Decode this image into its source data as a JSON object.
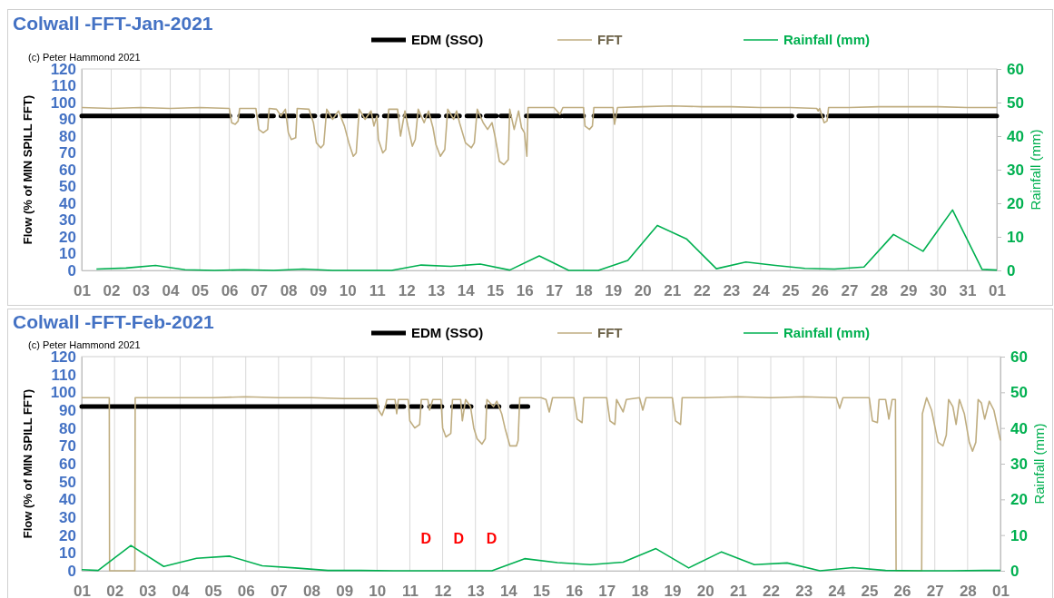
{
  "chart_data": [
    {
      "type": "line",
      "title": "Colwall -FFT-Jan-2021",
      "ylabel": "Flow (% of MIN SPILL FFT)",
      "y2label": "Rainfall (mm)",
      "annotations": [
        "(c) Peter Hammond 2021"
      ],
      "xlim": [
        "2021-01-01",
        "2021-02-01"
      ],
      "xticks": [
        {
          "value": "2021-01-01",
          "label": "01"
        },
        {
          "value": "2021-01-02",
          "label": "02"
        },
        {
          "value": "2021-01-03",
          "label": "03"
        },
        {
          "value": "2021-01-04",
          "label": "04"
        },
        {
          "value": "2021-01-05",
          "label": "05"
        },
        {
          "value": "2021-01-06",
          "label": "06"
        },
        {
          "value": "2021-01-07",
          "label": "07"
        },
        {
          "value": "2021-01-08",
          "label": "08"
        },
        {
          "value": "2021-01-09",
          "label": "09"
        },
        {
          "value": "2021-01-10",
          "label": "10"
        },
        {
          "value": "2021-01-11",
          "label": "11"
        },
        {
          "value": "2021-01-12",
          "label": "12"
        },
        {
          "value": "2021-01-13",
          "label": "13"
        },
        {
          "value": "2021-01-14",
          "label": "14"
        },
        {
          "value": "2021-01-15",
          "label": "15"
        },
        {
          "value": "2021-01-16",
          "label": "16"
        },
        {
          "value": "2021-01-17",
          "label": "17"
        },
        {
          "value": "2021-01-18",
          "label": "18"
        },
        {
          "value": "2021-01-19",
          "label": "19"
        },
        {
          "value": "2021-01-20",
          "label": "20"
        },
        {
          "value": "2021-01-21",
          "label": "21"
        },
        {
          "value": "2021-01-22",
          "label": "22"
        },
        {
          "value": "2021-01-23",
          "label": "23"
        },
        {
          "value": "2021-01-24",
          "label": "24"
        },
        {
          "value": "2021-01-25",
          "label": "25"
        },
        {
          "value": "2021-01-26",
          "label": "26"
        },
        {
          "value": "2021-01-27",
          "label": "27"
        },
        {
          "value": "2021-01-28",
          "label": "28"
        },
        {
          "value": "2021-01-29",
          "label": "29"
        },
        {
          "value": "2021-01-30",
          "label": "30"
        },
        {
          "value": "2021-01-31",
          "label": "31"
        },
        {
          "value": "2021-02-01",
          "label": "01"
        }
      ],
      "ylim": [
        0,
        120
      ],
      "yticks": [
        0,
        10,
        20,
        30,
        40,
        50,
        60,
        70,
        80,
        90,
        100,
        110,
        120
      ],
      "y2lim": [
        0,
        60
      ],
      "y2ticks": [
        0,
        10,
        20,
        30,
        40,
        50,
        60
      ],
      "grid": "x",
      "legend": "top",
      "series": [
        {
          "name": "EDM (SSO)",
          "color": "#000000",
          "x": [
            "2021-01-01T00:00",
            "2021-01-06T00:30",
            "2021-01-06T04:48",
            "2021-01-06T08:24",
            "2021-01-06T19:12",
            "2021-01-06T21:36",
            "2021-01-07T01:12",
            "2021-01-07T12:00",
            "2021-01-07T14:24",
            "2021-01-07T18:00",
            "2021-01-08T04:48",
            "2021-01-08T07:12",
            "2021-01-08T10:48",
            "2021-01-08T21:36",
            "2021-01-09T00:00",
            "2021-01-09T03:36",
            "2021-01-09T14:24",
            "2021-01-09T16:48",
            "2021-01-09T20:24",
            "2021-01-10T07:12",
            "2021-01-10T09:36",
            "2021-01-10T13:12",
            "2021-01-11T00:00",
            "2021-01-11T02:24",
            "2021-01-11T06:00",
            "2021-01-11T16:48",
            "2021-01-11T19:12",
            "2021-01-11T22:48",
            "2021-01-12T09:36",
            "2021-01-12T12:00",
            "2021-01-12T15:36",
            "2021-01-13T02:24",
            "2021-01-13T04:48",
            "2021-01-13T08:24",
            "2021-01-13T19:12",
            "2021-01-13T21:36",
            "2021-01-14T01:12",
            "2021-01-14T12:00",
            "2021-01-14T14:24",
            "2021-01-14T16:48",
            "2021-01-15T01:12",
            "2021-01-15T02:24",
            "2021-01-15T04:48",
            "2021-01-15T12:00",
            "2021-01-15T19:12",
            "2021-01-16T01:26",
            "2021-01-17T05:46",
            "2021-01-17T06:43",
            "2021-01-17T07:41",
            "2021-01-18T00:00",
            "2021-01-18T04:48",
            "2021-01-18T08:24",
            "2021-01-25T01:26",
            "2021-01-25T04:48",
            "2021-01-25T06:58",
            "2021-01-26T02:24",
            "2021-01-26T04:48",
            "2021-01-26T07:12",
            "2021-02-01T00:00"
          ],
          "values": [
            92,
            92,
            null,
            92,
            92,
            null,
            92,
            92,
            null,
            92,
            92,
            null,
            92,
            92,
            null,
            92,
            92,
            null,
            92,
            92,
            null,
            92,
            92,
            null,
            92,
            92,
            null,
            92,
            92,
            null,
            92,
            92,
            null,
            92,
            92,
            null,
            92,
            92,
            null,
            92,
            92,
            null,
            92,
            92,
            null,
            92,
            92,
            null,
            92,
            92,
            null,
            92,
            92,
            null,
            92,
            92,
            null,
            92,
            92
          ]
        },
        {
          "name": "FFT",
          "color": "#bfad80",
          "x": [
            "2021-01-01T00:00",
            "2021-01-02T00:00",
            "2021-01-03T00:00",
            "2021-01-04T00:00",
            "2021-01-05T00:00",
            "2021-01-06T00:00",
            "2021-01-06T01:55",
            "2021-01-06T04:48",
            "2021-01-06T07:12",
            "2021-01-06T08:24",
            "2021-01-06T21:36",
            "2021-01-07T00:00",
            "2021-01-07T03:36",
            "2021-01-07T07:12",
            "2021-01-07T08:24",
            "2021-01-07T14:24",
            "2021-01-07T18:00",
            "2021-01-07T21:36",
            "2021-01-08T00:00",
            "2021-01-08T02:24",
            "2021-01-08T06:00",
            "2021-01-08T07:12",
            "2021-01-08T16:48",
            "2021-01-08T20:24",
            "2021-01-08T22:48",
            "2021-01-09T02:24",
            "2021-01-09T04:48",
            "2021-01-09T07:12",
            "2021-01-09T12:00",
            "2021-01-09T16:48",
            "2021-01-09T21:36",
            "2021-01-10T01:12",
            "2021-01-10T04:48",
            "2021-01-10T07:12",
            "2021-01-10T09:36",
            "2021-01-10T14:24",
            "2021-01-10T19:12",
            "2021-01-10T21:36",
            "2021-01-11T00:00",
            "2021-01-11T01:12",
            "2021-01-11T04:48",
            "2021-01-11T07:12",
            "2021-01-11T09:36",
            "2021-01-11T16:48",
            "2021-01-11T19:12",
            "2021-01-11T22:48",
            "2021-01-12T01:12",
            "2021-01-12T04:48",
            "2021-01-12T07:12",
            "2021-01-12T09:36",
            "2021-01-12T14:24",
            "2021-01-12T18:00",
            "2021-01-12T21:36",
            "2021-01-13T00:00",
            "2021-01-13T03:36",
            "2021-01-13T07:12",
            "2021-01-13T09:36",
            "2021-01-13T14:24",
            "2021-01-13T16:48",
            "2021-01-13T19:12",
            "2021-01-14T00:00",
            "2021-01-14T04:48",
            "2021-01-14T07:12",
            "2021-01-14T09:36",
            "2021-01-14T14:24",
            "2021-01-14T18:00",
            "2021-01-14T21:36",
            "2021-01-15T00:00",
            "2021-01-15T03:36",
            "2021-01-15T07:12",
            "2021-01-15T10:48",
            "2021-01-15T12:00",
            "2021-01-15T15:36",
            "2021-01-15T19:12",
            "2021-01-15T21:36",
            "2021-01-16T00:00",
            "2021-01-16T01:55",
            "2021-01-16T02:53",
            "2021-01-17T00:00",
            "2021-01-17T04:48",
            "2021-01-17T07:12",
            "2021-01-18T00:00",
            "2021-01-18T01:12",
            "2021-01-18T04:48",
            "2021-01-18T07:12",
            "2021-01-18T08:24",
            "2021-01-19T00:00",
            "2021-01-19T01:12",
            "2021-01-19T03:36",
            "2021-01-20T00:00",
            "2021-01-21T00:00",
            "2021-01-22T00:00",
            "2021-01-23T00:00",
            "2021-01-24T00:00",
            "2021-01-25T00:00",
            "2021-01-25T21:36",
            "2021-01-25T22:48",
            "2021-01-26T00:00",
            "2021-01-26T03:36",
            "2021-01-26T06:00",
            "2021-01-26T07:12",
            "2021-01-27T00:00",
            "2021-01-28T00:00",
            "2021-01-29T00:00",
            "2021-01-30T00:00",
            "2021-01-31T00:00",
            "2021-02-01T00:00"
          ],
          "values": [
            97,
            96.5,
            97,
            96.5,
            97,
            96.5,
            88,
            87,
            89,
            96.5,
            96.5,
            84,
            82,
            84,
            96.5,
            96,
            92,
            96,
            82,
            78,
            79,
            96.5,
            96,
            88,
            76,
            73,
            75,
            96,
            90,
            95,
            86,
            76,
            68,
            70,
            96,
            90,
            95,
            86,
            92,
            78,
            70,
            72,
            96,
            96,
            80,
            95,
            86,
            74,
            78,
            96,
            88,
            95,
            85,
            75,
            68,
            72,
            96,
            90,
            95,
            88,
            76,
            73,
            76,
            96,
            88,
            84,
            88,
            80,
            65,
            63,
            66,
            96,
            84,
            95,
            85,
            82,
            68,
            97,
            97,
            93,
            97,
            97,
            86,
            84,
            86,
            97,
            97,
            87,
            97,
            97.5,
            98,
            97.5,
            97.5,
            97,
            97,
            96.5,
            95,
            96.5,
            88,
            89,
            97,
            97,
            97.5,
            97.5,
            97.5,
            97,
            97
          ]
        },
        {
          "name": "Rainfall (mm)",
          "color": "#00b050",
          "axis": "y2",
          "x": [
            "2021-01-01T12:00",
            "2021-01-02T12:00",
            "2021-01-03T12:00",
            "2021-01-04T12:00",
            "2021-01-05T12:00",
            "2021-01-06T12:00",
            "2021-01-07T12:00",
            "2021-01-08T12:00",
            "2021-01-09T12:00",
            "2021-01-10T12:00",
            "2021-01-11T12:00",
            "2021-01-12T12:00",
            "2021-01-13T12:00",
            "2021-01-14T12:00",
            "2021-01-15T12:00",
            "2021-01-16T12:00",
            "2021-01-17T12:00",
            "2021-01-18T12:00",
            "2021-01-19T12:00",
            "2021-01-20T12:00",
            "2021-01-21T12:00",
            "2021-01-22T12:00",
            "2021-01-23T12:00",
            "2021-01-24T12:00",
            "2021-01-25T12:00",
            "2021-01-26T12:00",
            "2021-01-27T12:00",
            "2021-01-28T12:00",
            "2021-01-29T12:00",
            "2021-01-30T12:00",
            "2021-01-31T12:00",
            "2021-02-01T00:00"
          ],
          "values": [
            0.4,
            0.7,
            1.5,
            0.2,
            0,
            0.2,
            0,
            0.4,
            0,
            0,
            0,
            1.6,
            1.2,
            1.9,
            0.1,
            4.3,
            0,
            0,
            3,
            13.4,
            9.3,
            0.5,
            2.5,
            1.5,
            0.6,
            0.4,
            1,
            10.7,
            5.7,
            18,
            0.3,
            0.1
          ]
        }
      ]
    },
    {
      "type": "line",
      "title": "Colwall -FFT-Feb-2021",
      "ylabel": "Flow (% of MIN SPILL FFT)",
      "y2label": "Rainfall (mm)",
      "annotations": [
        "(c) Peter Hammond 2021",
        "D",
        "D",
        "D"
      ],
      "xlim": [
        "2021-02-01",
        "2021-03-01"
      ],
      "xticks": [
        {
          "value": "2021-02-01",
          "label": "01"
        },
        {
          "value": "2021-02-02",
          "label": "02"
        },
        {
          "value": "2021-02-03",
          "label": "03"
        },
        {
          "value": "2021-02-04",
          "label": "04"
        },
        {
          "value": "2021-02-05",
          "label": "05"
        },
        {
          "value": "2021-02-06",
          "label": "06"
        },
        {
          "value": "2021-02-07",
          "label": "07"
        },
        {
          "value": "2021-02-08",
          "label": "08"
        },
        {
          "value": "2021-02-09",
          "label": "09"
        },
        {
          "value": "2021-02-10",
          "label": "10"
        },
        {
          "value": "2021-02-11",
          "label": "11"
        },
        {
          "value": "2021-02-12",
          "label": "12"
        },
        {
          "value": "2021-02-13",
          "label": "13"
        },
        {
          "value": "2021-02-14",
          "label": "14"
        },
        {
          "value": "2021-02-15",
          "label": "15"
        },
        {
          "value": "2021-02-16",
          "label": "16"
        },
        {
          "value": "2021-02-17",
          "label": "17"
        },
        {
          "value": "2021-02-18",
          "label": "18"
        },
        {
          "value": "2021-02-19",
          "label": "19"
        },
        {
          "value": "2021-02-20",
          "label": "20"
        },
        {
          "value": "2021-02-21",
          "label": "21"
        },
        {
          "value": "2021-02-22",
          "label": "22"
        },
        {
          "value": "2021-02-23",
          "label": "23"
        },
        {
          "value": "2021-02-24",
          "label": "24"
        },
        {
          "value": "2021-02-25",
          "label": "25"
        },
        {
          "value": "2021-02-26",
          "label": "26"
        },
        {
          "value": "2021-02-27",
          "label": "27"
        },
        {
          "value": "2021-02-28",
          "label": "28"
        },
        {
          "value": "2021-03-01",
          "label": "01"
        }
      ],
      "ylim": [
        0,
        120
      ],
      "yticks": [
        0,
        10,
        20,
        30,
        40,
        50,
        60,
        70,
        80,
        90,
        100,
        110,
        120
      ],
      "y2lim": [
        0,
        60
      ],
      "y2ticks": [
        0,
        10,
        20,
        30,
        40,
        50,
        60
      ],
      "grid": "x",
      "legend": "top",
      "series": [
        {
          "name": "EDM (SSO)",
          "color": "#000000",
          "x": [
            "2021-02-01T00:00",
            "2021-02-10T00:00",
            "2021-02-10T03:36",
            "2021-02-10T07:12",
            "2021-02-10T19:41",
            "2021-02-10T21:36",
            "2021-02-11T00:43",
            "2021-02-11T08:24",
            "2021-02-11T12:00",
            "2021-02-11T14:24",
            "2021-02-11T23:31",
            "2021-02-12T02:24",
            "2021-02-12T07:12",
            "2021-02-12T20:53",
            "2021-02-13T02:24",
            "2021-02-13T08:24",
            "2021-02-13T17:17",
            "2021-02-13T21:36",
            "2021-02-14T02:24",
            "2021-02-14T14:24"
          ],
          "values": [
            92,
            92,
            null,
            92,
            92,
            null,
            92,
            92,
            null,
            92,
            92,
            null,
            92,
            92,
            null,
            92,
            92,
            null,
            92,
            92
          ]
        },
        {
          "name": "FFT",
          "color": "#bfad80",
          "x": [
            "2021-02-01T00:00",
            "2021-02-01T12:00",
            "2021-02-01T20:10",
            "2021-02-01T20:24",
            "2021-02-02T14:53",
            "2021-02-02T15:07",
            "2021-02-03T00:00",
            "2021-02-04T00:00",
            "2021-02-05T00:00",
            "2021-02-06T00:00",
            "2021-02-07T00:00",
            "2021-02-08T00:00",
            "2021-02-09T00:00",
            "2021-02-10T00:00",
            "2021-02-10T01:12",
            "2021-02-10T03:36",
            "2021-02-10T06:00",
            "2021-02-10T07:12",
            "2021-02-10T13:12",
            "2021-02-10T14:24",
            "2021-02-10T15:36",
            "2021-02-10T22:48",
            "2021-02-11T00:00",
            "2021-02-11T03:36",
            "2021-02-11T07:12",
            "2021-02-11T08:24",
            "2021-02-11T13:12",
            "2021-02-11T14:24",
            "2021-02-11T16:48",
            "2021-02-11T22:48",
            "2021-02-12T00:00",
            "2021-02-12T02:24",
            "2021-02-12T06:00",
            "2021-02-12T07:12",
            "2021-02-12T13:12",
            "2021-02-12T14:24",
            "2021-02-12T16:48",
            "2021-02-12T20:24",
            "2021-02-12T22:48",
            "2021-02-13T01:12",
            "2021-02-13T04:48",
            "2021-02-13T07:12",
            "2021-02-13T08:24",
            "2021-02-13T13:12",
            "2021-02-13T15:36",
            "2021-02-13T19:12",
            "2021-02-13T21:36",
            "2021-02-14T01:12",
            "2021-02-14T06:00",
            "2021-02-14T07:12",
            "2021-02-14T08:24",
            "2021-02-15T00:00",
            "2021-02-15T03:36",
            "2021-02-15T06:00",
            "2021-02-15T08:24",
            "2021-02-16T00:00",
            "2021-02-16T02:24",
            "2021-02-16T06:00",
            "2021-02-16T07:12",
            "2021-02-17T00:00",
            "2021-02-17T02:24",
            "2021-02-17T06:00",
            "2021-02-17T07:12",
            "2021-02-17T12:00",
            "2021-02-17T14:24",
            "2021-02-18T00:00",
            "2021-02-18T02:24",
            "2021-02-18T04:48",
            "2021-02-19T00:00",
            "2021-02-19T02:24",
            "2021-02-19T06:00",
            "2021-02-19T07:12",
            "2021-02-20T00:00",
            "2021-02-21T00:00",
            "2021-02-22T00:00",
            "2021-02-23T00:00",
            "2021-02-24T00:00",
            "2021-02-24T02:24",
            "2021-02-24T04:48",
            "2021-02-25T00:00",
            "2021-02-25T02:24",
            "2021-02-25T06:00",
            "2021-02-25T07:12",
            "2021-02-25T12:00",
            "2021-02-25T14:24",
            "2021-02-25T16:48",
            "2021-02-25T19:12",
            "2021-02-25T19:41",
            "2021-02-26T14:24",
            "2021-02-26T14:53",
            "2021-02-26T18:00",
            "2021-02-26T21:36",
            "2021-02-27T02:24",
            "2021-02-27T06:00",
            "2021-02-27T08:24",
            "2021-02-27T10:05",
            "2021-02-27T13:12",
            "2021-02-27T15:36",
            "2021-02-27T18:00",
            "2021-02-27T21:36",
            "2021-02-28T01:12",
            "2021-02-28T03:36",
            "2021-02-28T06:00",
            "2021-02-28T07:41",
            "2021-02-28T10:05",
            "2021-02-28T12:29",
            "2021-02-28T15:50",
            "2021-02-28T19:12",
            "2021-03-01T00:00"
          ],
          "values": [
            97,
            97,
            97,
            0,
            0,
            97,
            97,
            97,
            97,
            97.5,
            97,
            97,
            96.5,
            96.5,
            90,
            87,
            92,
            96,
            96,
            88,
            96,
            96,
            84,
            80,
            82,
            96,
            96,
            90,
            96,
            96,
            80,
            75,
            77,
            96,
            96,
            84,
            96,
            92,
            80,
            74,
            71,
            74,
            96,
            92,
            95,
            88,
            80,
            70,
            70,
            73,
            97,
            97,
            96,
            89,
            97,
            97,
            85,
            83,
            97,
            97,
            84,
            82,
            96,
            89,
            96,
            97,
            90,
            97,
            97,
            84,
            82,
            97,
            97,
            97.5,
            97,
            97.5,
            97,
            91,
            97,
            97,
            84,
            83,
            96,
            96,
            85,
            96,
            96,
            0,
            0,
            88,
            97,
            90,
            72,
            70,
            76,
            96,
            92,
            82,
            96,
            88,
            72,
            67,
            72,
            96,
            94,
            85,
            95,
            90,
            73
          ]
        },
        {
          "name": "Rainfall (mm)",
          "color": "#00b050",
          "axis": "y2",
          "x": [
            "2021-02-01T00:00",
            "2021-02-01T12:00",
            "2021-02-02T12:00",
            "2021-02-03T12:00",
            "2021-02-04T12:00",
            "2021-02-05T12:00",
            "2021-02-06T12:00",
            "2021-02-07T12:00",
            "2021-02-08T12:00",
            "2021-02-09T12:00",
            "2021-02-10T12:00",
            "2021-02-11T12:00",
            "2021-02-12T12:00",
            "2021-02-13T12:00",
            "2021-02-14T12:00",
            "2021-02-15T12:00",
            "2021-02-16T12:00",
            "2021-02-17T12:00",
            "2021-02-18T12:00",
            "2021-02-19T12:00",
            "2021-02-20T12:00",
            "2021-02-21T12:00",
            "2021-02-22T12:00",
            "2021-02-23T12:00",
            "2021-02-24T12:00",
            "2021-02-25T12:00",
            "2021-02-26T12:00",
            "2021-02-27T12:00",
            "2021-02-28T12:00",
            "2021-03-01T00:00"
          ],
          "values": [
            0.3,
            0.1,
            7.1,
            1.2,
            3.5,
            4.1,
            1.4,
            0.8,
            0.1,
            0.1,
            0,
            0,
            0,
            0,
            3.4,
            2.3,
            1.7,
            2.4,
            6.2,
            0.8,
            5.3,
            1.7,
            2.2,
            0,
            0.9,
            0.1,
            0,
            0,
            0.1,
            0.1
          ]
        }
      ]
    }
  ]
}
